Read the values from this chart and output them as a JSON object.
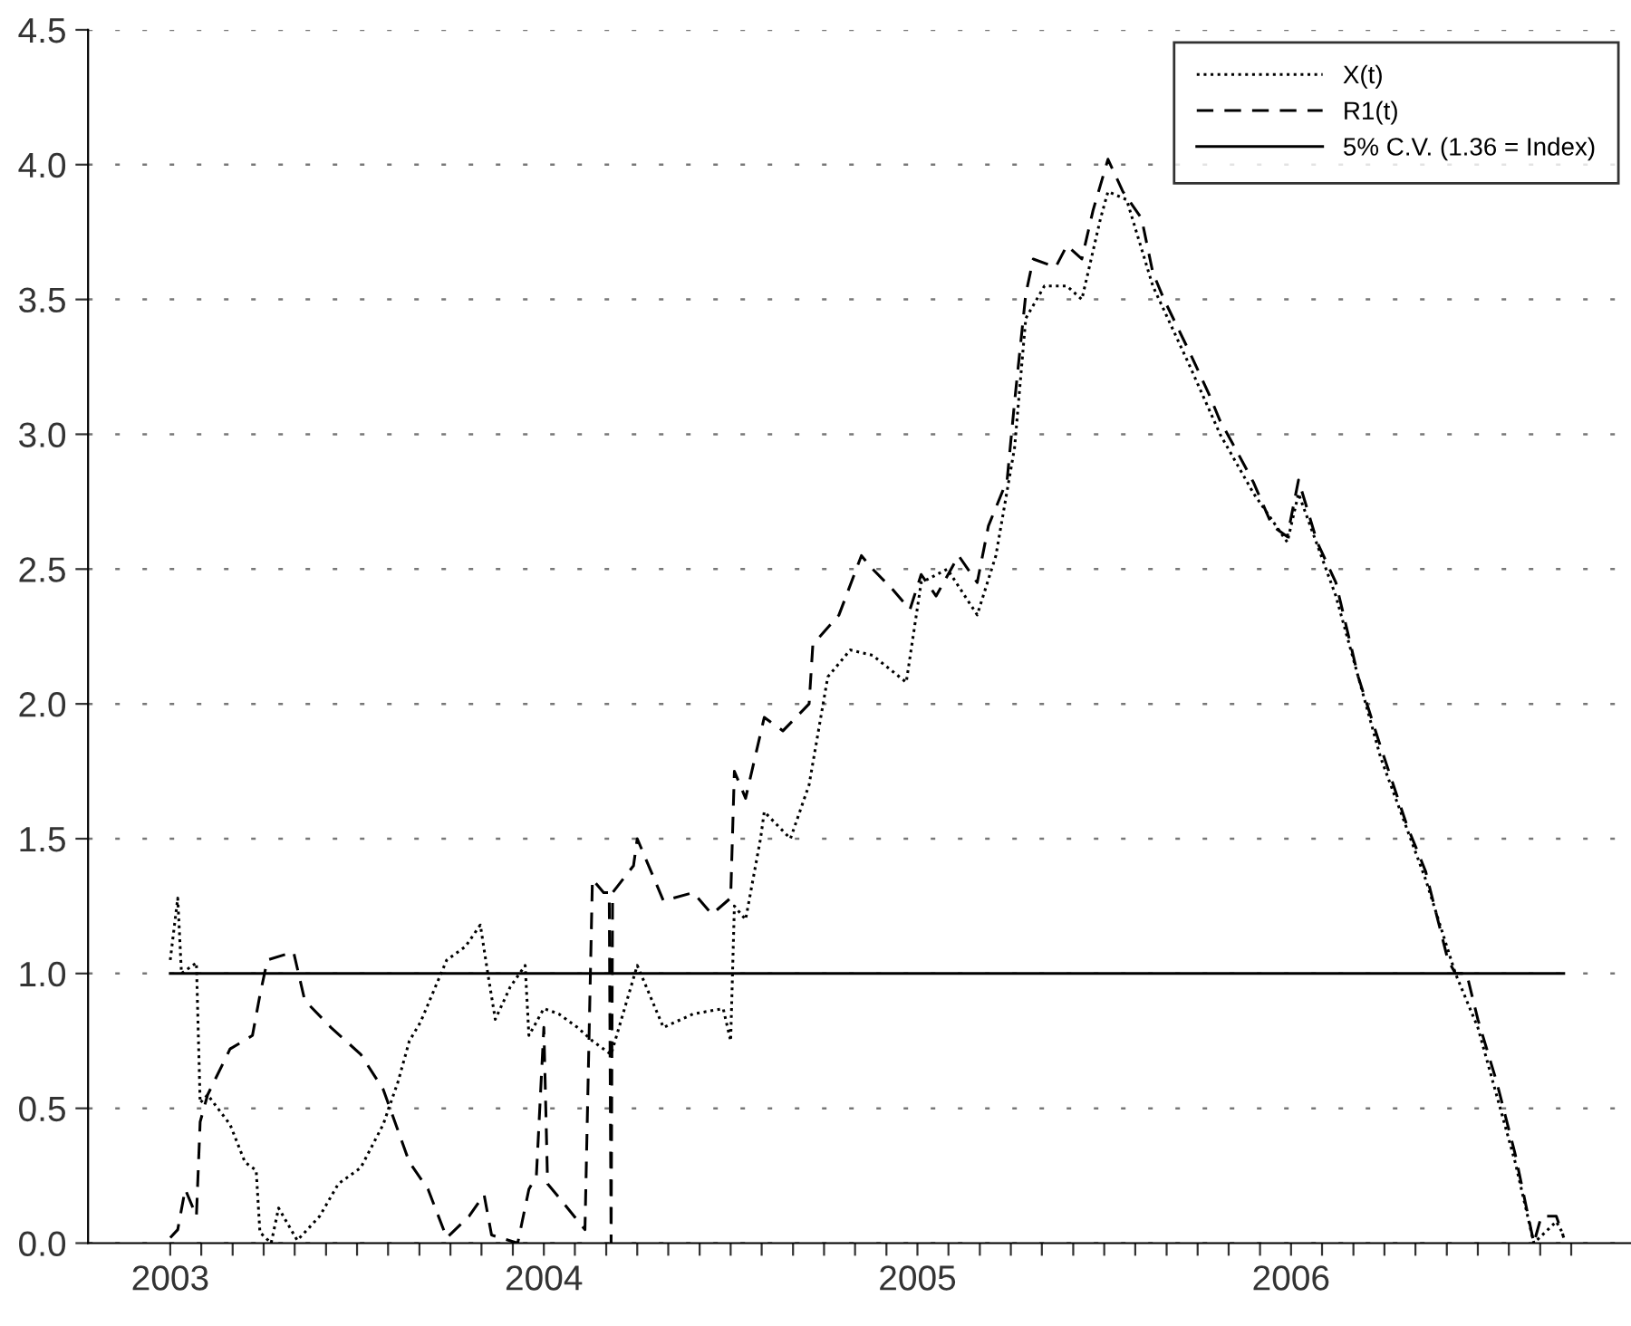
{
  "chart_data": {
    "type": "line",
    "xlim": [
      2002.78,
      2006.91
    ],
    "ylim": [
      0,
      4.5
    ],
    "yticks": [
      {
        "value": 0,
        "label": "0.0"
      },
      0.5,
      {
        "value": 1,
        "label": "1.0"
      },
      1.5,
      {
        "value": 2,
        "label": "2.0"
      },
      2.5,
      {
        "value": 3,
        "label": "3.0"
      },
      3.5,
      {
        "value": 4,
        "label": "4.0"
      },
      4.5
    ],
    "xticks": [
      {
        "value": 2003,
        "label": "2003"
      },
      {
        "value": 2004,
        "label": "2004"
      },
      {
        "value": 2005,
        "label": "2005"
      },
      {
        "value": 2006,
        "label": "2006"
      },
      {
        "value": 2003.083,
        "label": null
      },
      {
        "value": 2003.167,
        "label": null
      },
      {
        "value": 2003.25,
        "label": null
      },
      {
        "value": 2003.333,
        "label": null
      },
      {
        "value": 2003.417,
        "label": null
      },
      {
        "value": 2003.5,
        "label": null
      },
      {
        "value": 2003.583,
        "label": null
      },
      {
        "value": 2003.667,
        "label": null
      },
      {
        "value": 2003.75,
        "label": null
      },
      {
        "value": 2003.833,
        "label": null
      },
      {
        "value": 2003.917,
        "label": null
      },
      {
        "value": 2004.083,
        "label": null
      },
      {
        "value": 2004.167,
        "label": null
      },
      {
        "value": 2004.25,
        "label": null
      },
      {
        "value": 2004.333,
        "label": null
      },
      {
        "value": 2004.417,
        "label": null
      },
      {
        "value": 2004.5,
        "label": null
      },
      {
        "value": 2004.583,
        "label": null
      },
      {
        "value": 2004.667,
        "label": null
      },
      {
        "value": 2004.75,
        "label": null
      },
      {
        "value": 2004.833,
        "label": null
      },
      {
        "value": 2004.917,
        "label": null
      },
      {
        "value": 2005.083,
        "label": null
      },
      {
        "value": 2005.167,
        "label": null
      },
      {
        "value": 2005.25,
        "label": null
      },
      {
        "value": 2005.333,
        "label": null
      },
      {
        "value": 2005.417,
        "label": null
      },
      {
        "value": 2005.5,
        "label": null
      },
      {
        "value": 2005.583,
        "label": null
      },
      {
        "value": 2005.667,
        "label": null
      },
      {
        "value": 2005.75,
        "label": null
      },
      {
        "value": 2005.833,
        "label": null
      },
      {
        "value": 2005.917,
        "label": null
      },
      {
        "value": 2006.083,
        "label": null
      },
      {
        "value": 2006.167,
        "label": null
      },
      {
        "value": 2006.25,
        "label": null
      },
      {
        "value": 2006.333,
        "label": null
      },
      {
        "value": 2006.417,
        "label": null
      },
      {
        "value": 2006.5,
        "label": null
      },
      {
        "value": 2006.583,
        "label": null
      },
      {
        "value": 2006.667,
        "label": null
      },
      {
        "value": 2006.75,
        "label": null
      }
    ],
    "grid": "y",
    "legend": "top right",
    "series": [
      {
        "name": "X(t)",
        "color": "#000000",
        "line_style": "dotted",
        "x": [
          2003.0,
          2003.02,
          2003.03,
          2003.07,
          2003.08,
          2003.1,
          2003.16,
          2003.2,
          2003.23,
          2003.24,
          2003.27,
          2003.29,
          2003.34,
          2003.4,
          2003.45,
          2003.51,
          2003.57,
          2003.61,
          2003.64,
          2003.67,
          2003.74,
          2003.79,
          2003.83,
          2003.85,
          2003.87,
          2003.91,
          2003.95,
          2003.96,
          2004.0,
          2004.04,
          2004.09,
          2004.13,
          2004.18,
          2004.25,
          2004.32,
          2004.4,
          2004.48,
          2004.5,
          2004.51,
          2004.54,
          2004.58,
          2004.59,
          2004.66,
          2004.71,
          2004.76,
          2004.82,
          2004.88,
          2004.97,
          2005.01,
          2005.08,
          2005.16,
          2005.21,
          2005.26,
          2005.29,
          2005.34,
          2005.4,
          2005.44,
          2005.49,
          2005.51,
          2005.56,
          2005.63,
          2005.73,
          2005.81,
          2005.9,
          2005.99,
          2006.02,
          2006.12,
          2006.24,
          2006.36,
          2006.44,
          2006.5,
          2006.6,
          2006.65,
          2006.71,
          2006.73
        ],
        "values": [
          1.05,
          1.28,
          1.0,
          1.04,
          0.52,
          0.55,
          0.44,
          0.3,
          0.27,
          0.04,
          0.0,
          0.13,
          0.01,
          0.1,
          0.22,
          0.28,
          0.44,
          0.6,
          0.75,
          0.82,
          1.05,
          1.1,
          1.18,
          1.0,
          0.83,
          0.95,
          1.03,
          0.77,
          0.87,
          0.85,
          0.8,
          0.75,
          0.7,
          1.03,
          0.8,
          0.85,
          0.87,
          0.75,
          1.25,
          1.2,
          1.5,
          1.6,
          1.5,
          1.7,
          2.1,
          2.2,
          2.18,
          2.08,
          2.45,
          2.5,
          2.33,
          2.55,
          2.95,
          3.43,
          3.55,
          3.55,
          3.5,
          3.8,
          3.9,
          3.87,
          3.55,
          3.25,
          3.0,
          2.78,
          2.6,
          2.78,
          2.4,
          1.8,
          1.35,
          1.0,
          0.8,
          0.3,
          0.0,
          0.08,
          0.03
        ]
      },
      {
        "name": "R1(t)",
        "color": "#000000",
        "line_style": "dashed",
        "x": [
          2003.0,
          2003.02,
          2003.04,
          2003.07,
          2003.08,
          2003.1,
          2003.16,
          2003.22,
          2003.24,
          2003.26,
          2003.33,
          2003.36,
          2003.43,
          2003.51,
          2003.57,
          2003.64,
          2003.69,
          2003.74,
          2003.8,
          2003.84,
          2003.86,
          2003.93,
          2003.96,
          2003.98,
          2004.0,
          2004.01,
          2004.04,
          2004.11,
          2004.13,
          2004.16,
          2004.175,
          2004.18,
          2004.184,
          2004.24,
          2004.25,
          2004.32,
          2004.4,
          2004.45,
          2004.5,
          2004.51,
          2004.54,
          2004.59,
          2004.64,
          2004.71,
          2004.72,
          2004.79,
          2004.85,
          2004.88,
          2004.93,
          2004.98,
          2005.01,
          2005.05,
          2005.11,
          2005.16,
          2005.19,
          2005.24,
          2005.26,
          2005.29,
          2005.31,
          2005.37,
          2005.4,
          2005.44,
          2005.47,
          2005.51,
          2005.55,
          2005.6,
          2005.63,
          2005.66,
          2005.73,
          2005.78,
          2005.81,
          2005.85,
          2005.9,
          2005.95,
          2005.99,
          2006.02,
          2006.07,
          2006.12,
          2006.18,
          2006.24,
          2006.31,
          2006.36,
          2006.42,
          2006.44,
          2006.47,
          2006.5,
          2006.55,
          2006.6,
          2006.65,
          2006.67,
          2006.71,
          2006.73
        ],
        "values": [
          0.02,
          0.05,
          0.2,
          0.1,
          0.45,
          0.55,
          0.72,
          0.77,
          0.92,
          1.05,
          1.08,
          0.9,
          0.8,
          0.7,
          0.57,
          0.3,
          0.2,
          0.02,
          0.1,
          0.18,
          0.03,
          0.0,
          0.2,
          0.25,
          0.8,
          0.22,
          0.17,
          0.05,
          1.35,
          1.3,
          1.3,
          0.0,
          1.3,
          1.4,
          1.5,
          1.27,
          1.3,
          1.22,
          1.28,
          1.75,
          1.65,
          1.95,
          1.9,
          2.0,
          2.22,
          2.33,
          2.55,
          2.5,
          2.43,
          2.35,
          2.48,
          2.4,
          2.55,
          2.45,
          2.66,
          2.83,
          3.12,
          3.52,
          3.65,
          3.62,
          3.7,
          3.65,
          3.83,
          4.02,
          3.9,
          3.8,
          3.6,
          3.5,
          3.3,
          3.15,
          3.05,
          2.95,
          2.82,
          2.66,
          2.62,
          2.83,
          2.6,
          2.45,
          2.1,
          1.84,
          1.55,
          1.38,
          1.05,
          1.0,
          1.0,
          0.83,
          0.6,
          0.33,
          0.0,
          0.1,
          0.1,
          0.02
        ]
      },
      {
        "name": "5% C.V. (1.36 = Index)",
        "color": "#000000",
        "line_style": "solid",
        "x": [
          2003.0,
          2006.73
        ],
        "values": [
          1.0,
          1.0
        ]
      }
    ]
  }
}
